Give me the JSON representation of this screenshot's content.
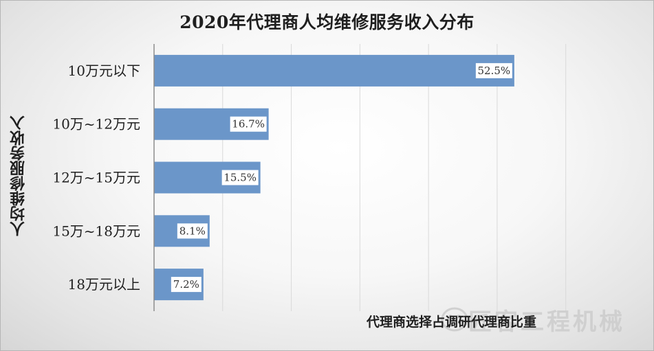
{
  "chart_data": {
    "type": "bar",
    "orientation": "horizontal",
    "title": "2020年代理商人均维修服务收入分布",
    "xlabel": "代理商选择占调研代理商比重",
    "ylabel": "人均维修服务收入",
    "categories": [
      "10万元以下",
      "10万~12万元",
      "12万~15万元",
      "15万~18万元",
      "18万元以上"
    ],
    "values": [
      52.5,
      16.7,
      15.5,
      8.1,
      7.2
    ],
    "data_labels": [
      "52.5%",
      "16.7%",
      "15.5%",
      "8.1%",
      "7.2%"
    ],
    "xlim": [
      0,
      60
    ],
    "grid": true,
    "legend": "none",
    "bar_color": "#6b96c9"
  },
  "watermark": {
    "text": "匠客工程机械",
    "icon": "sheep-logo-icon"
  }
}
